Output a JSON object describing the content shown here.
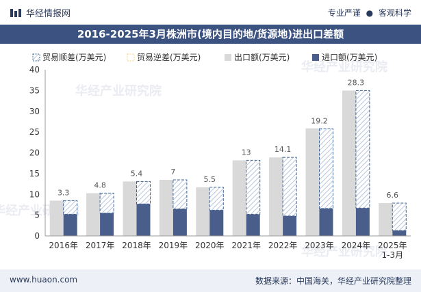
{
  "header": {
    "brand": "华经情报网",
    "tag1": "专业严谨",
    "tag_sep": "●",
    "tag2": "客观科学"
  },
  "title": "2016-2025年3月株洲市(境内目的地/货源地)进出口差额",
  "footer": {
    "website": "www.huaon.com",
    "source": "数据来源：中国海关，华经产业研究院整理"
  },
  "watermark": "华经产业研究院",
  "colors": {
    "export": "#d9d9d9",
    "import": "#4a5e8c",
    "surplus_border": "#3f6496",
    "surplus_hatch": "#b8c5dc",
    "deficit": "#f2d77a",
    "title_bg": "#3c5280"
  },
  "chart_data": {
    "type": "bar",
    "categories": [
      "2016年",
      "2017年",
      "2018年",
      "2019年",
      "2020年",
      "2021年",
      "2022年",
      "2023年",
      "2024年",
      "2025年\n1-3月"
    ],
    "series": [
      {
        "name": "贸易顺差(万美元)",
        "values": [
          3.3,
          4.8,
          5.4,
          7,
          5.5,
          13,
          14.1,
          19.2,
          28.3,
          6.6
        ]
      },
      {
        "name": "贸易逆差(万美元)",
        "values": [
          0,
          0,
          0,
          0,
          0,
          0,
          0,
          0,
          0,
          0
        ]
      },
      {
        "name": "出口额(万美元)",
        "values": [
          8.5,
          10.3,
          13.1,
          13.5,
          11.7,
          18.2,
          18.9,
          25.9,
          35.0,
          7.9
        ]
      },
      {
        "name": "进口额(万美元)",
        "values": [
          5.2,
          5.5,
          7.7,
          6.5,
          6.2,
          5.2,
          4.8,
          6.6,
          6.7,
          1.3
        ]
      }
    ],
    "data_labels": [
      "3.3",
      "4.8",
      "5.4",
      "7",
      "5.5",
      "13",
      "14.1",
      "19.2",
      "28.3",
      "6.6"
    ],
    "ylim": [
      0,
      40
    ],
    "yticks": [
      0,
      5,
      10,
      15,
      20,
      25,
      30,
      35,
      40
    ],
    "legend_position": "top",
    "grid": false
  }
}
